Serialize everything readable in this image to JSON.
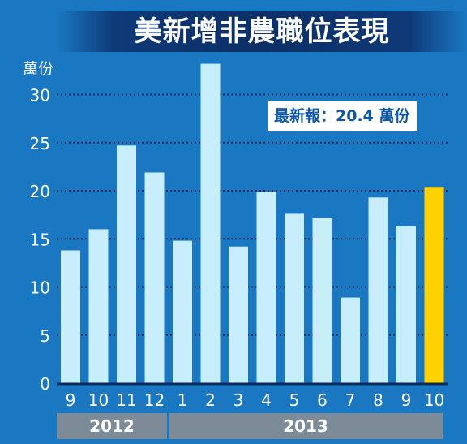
{
  "title": "美新增非農職位表現",
  "callout": "最新報：20.4 萬份",
  "colors": {
    "bar": "#c8eefc",
    "highlight": "#ffd200",
    "background": "#1a78c2"
  },
  "chart_data": {
    "type": "bar",
    "title": "美新增非農職位表現",
    "ylabel": "萬份",
    "ylim": [
      0,
      33
    ],
    "yticks": [
      0,
      5,
      10,
      15,
      20,
      25,
      30
    ],
    "grid": true,
    "categories": [
      "9",
      "10",
      "11",
      "12",
      "1",
      "2",
      "3",
      "4",
      "5",
      "6",
      "7",
      "8",
      "9",
      "10"
    ],
    "values": [
      13.8,
      16.0,
      24.7,
      21.9,
      14.8,
      33.2,
      14.2,
      19.9,
      17.6,
      17.2,
      8.9,
      19.3,
      16.3,
      20.4
    ],
    "highlight_index": 13,
    "year_groups": [
      {
        "label": "2012",
        "count": 4
      },
      {
        "label": "2013",
        "count": 10
      }
    ]
  }
}
